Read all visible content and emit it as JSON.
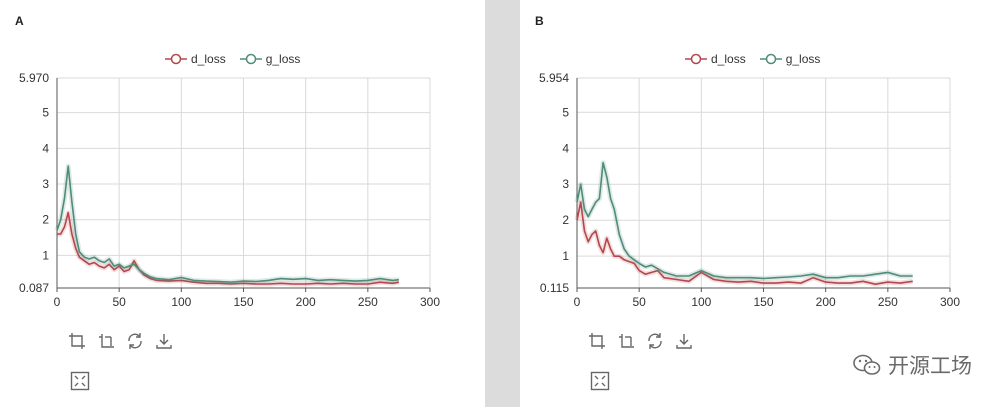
{
  "watermark": {
    "text": "开源工场",
    "icon": "wechat-logo"
  },
  "toolbar_icons": [
    "zoom-select-icon",
    "zoom-reset-icon",
    "restore-icon",
    "download-icon"
  ],
  "fullscreen_icon": "fullscreen-icon",
  "colors": {
    "d_loss": "#b5474b",
    "g_loss": "#4f8c7a",
    "grid": "#d9d9d9",
    "divider": "#dcdcdc"
  },
  "chart_data": [
    {
      "panel_label": "A",
      "type": "line",
      "legend": "top-center",
      "grid": true,
      "xlim": [
        0,
        300
      ],
      "ylim": [
        0.087,
        5.97
      ],
      "xticks": [
        "0",
        "50",
        "100",
        "150",
        "200",
        "250",
        "300"
      ],
      "yticks": [
        "0.087",
        "1",
        "2",
        "3",
        "4",
        "5",
        "5.970"
      ],
      "series": [
        {
          "name": "d_loss",
          "x": [
            0,
            3,
            6,
            9,
            12,
            15,
            18,
            22,
            26,
            30,
            34,
            38,
            42,
            46,
            50,
            54,
            58,
            62,
            66,
            70,
            75,
            80,
            90,
            100,
            110,
            120,
            130,
            140,
            150,
            160,
            170,
            180,
            190,
            200,
            210,
            220,
            230,
            240,
            250,
            260,
            270,
            275
          ],
          "y": [
            1.6,
            1.6,
            1.8,
            2.2,
            1.6,
            1.2,
            0.95,
            0.85,
            0.75,
            0.8,
            0.7,
            0.65,
            0.75,
            0.6,
            0.7,
            0.55,
            0.6,
            0.85,
            0.6,
            0.45,
            0.35,
            0.3,
            0.28,
            0.3,
            0.25,
            0.22,
            0.22,
            0.2,
            0.22,
            0.2,
            0.2,
            0.22,
            0.2,
            0.2,
            0.22,
            0.2,
            0.22,
            0.2,
            0.2,
            0.25,
            0.22,
            0.25
          ]
        },
        {
          "name": "g_loss",
          "x": [
            0,
            3,
            6,
            9,
            12,
            15,
            18,
            22,
            26,
            30,
            34,
            38,
            42,
            46,
            50,
            54,
            58,
            62,
            66,
            70,
            75,
            80,
            90,
            100,
            110,
            120,
            130,
            140,
            150,
            160,
            170,
            180,
            190,
            200,
            210,
            220,
            230,
            240,
            250,
            260,
            270,
            275
          ],
          "y": [
            1.7,
            2.0,
            2.6,
            3.5,
            2.5,
            1.6,
            1.1,
            0.95,
            0.9,
            0.95,
            0.85,
            0.8,
            0.9,
            0.7,
            0.75,
            0.65,
            0.7,
            0.75,
            0.6,
            0.5,
            0.4,
            0.35,
            0.32,
            0.38,
            0.3,
            0.28,
            0.27,
            0.25,
            0.28,
            0.27,
            0.3,
            0.35,
            0.33,
            0.35,
            0.3,
            0.32,
            0.3,
            0.28,
            0.3,
            0.35,
            0.3,
            0.32
          ]
        }
      ]
    },
    {
      "panel_label": "B",
      "type": "line",
      "legend": "top-center",
      "grid": true,
      "xlim": [
        0,
        300
      ],
      "ylim": [
        0.115,
        5.954
      ],
      "xticks": [
        "0",
        "50",
        "100",
        "150",
        "200",
        "250",
        "300"
      ],
      "yticks": [
        "0.115",
        "1",
        "2",
        "3",
        "4",
        "5",
        "5.954"
      ],
      "series": [
        {
          "name": "d_loss",
          "x": [
            0,
            3,
            6,
            9,
            12,
            15,
            18,
            21,
            24,
            27,
            30,
            34,
            38,
            42,
            46,
            50,
            55,
            60,
            65,
            70,
            80,
            90,
            100,
            110,
            120,
            130,
            140,
            150,
            160,
            170,
            180,
            190,
            200,
            210,
            220,
            230,
            240,
            250,
            260,
            270
          ],
          "y": [
            2.0,
            2.5,
            1.7,
            1.4,
            1.6,
            1.7,
            1.3,
            1.1,
            1.5,
            1.2,
            1.0,
            1.0,
            0.9,
            0.85,
            0.8,
            0.6,
            0.5,
            0.55,
            0.6,
            0.4,
            0.35,
            0.3,
            0.55,
            0.35,
            0.3,
            0.28,
            0.3,
            0.25,
            0.25,
            0.28,
            0.25,
            0.4,
            0.28,
            0.25,
            0.25,
            0.3,
            0.22,
            0.28,
            0.25,
            0.3
          ]
        },
        {
          "name": "g_loss",
          "x": [
            0,
            3,
            6,
            9,
            12,
            15,
            18,
            21,
            24,
            27,
            30,
            34,
            38,
            42,
            46,
            50,
            55,
            60,
            65,
            70,
            80,
            90,
            100,
            110,
            120,
            130,
            140,
            150,
            160,
            170,
            180,
            190,
            200,
            210,
            220,
            230,
            240,
            250,
            260,
            270
          ],
          "y": [
            2.5,
            3.0,
            2.3,
            2.1,
            2.3,
            2.5,
            2.6,
            3.6,
            3.2,
            2.6,
            2.3,
            1.6,
            1.2,
            1.0,
            0.9,
            0.8,
            0.7,
            0.75,
            0.65,
            0.55,
            0.45,
            0.45,
            0.6,
            0.45,
            0.4,
            0.4,
            0.4,
            0.38,
            0.4,
            0.42,
            0.45,
            0.5,
            0.4,
            0.4,
            0.45,
            0.45,
            0.5,
            0.55,
            0.45,
            0.45
          ]
        }
      ]
    }
  ]
}
